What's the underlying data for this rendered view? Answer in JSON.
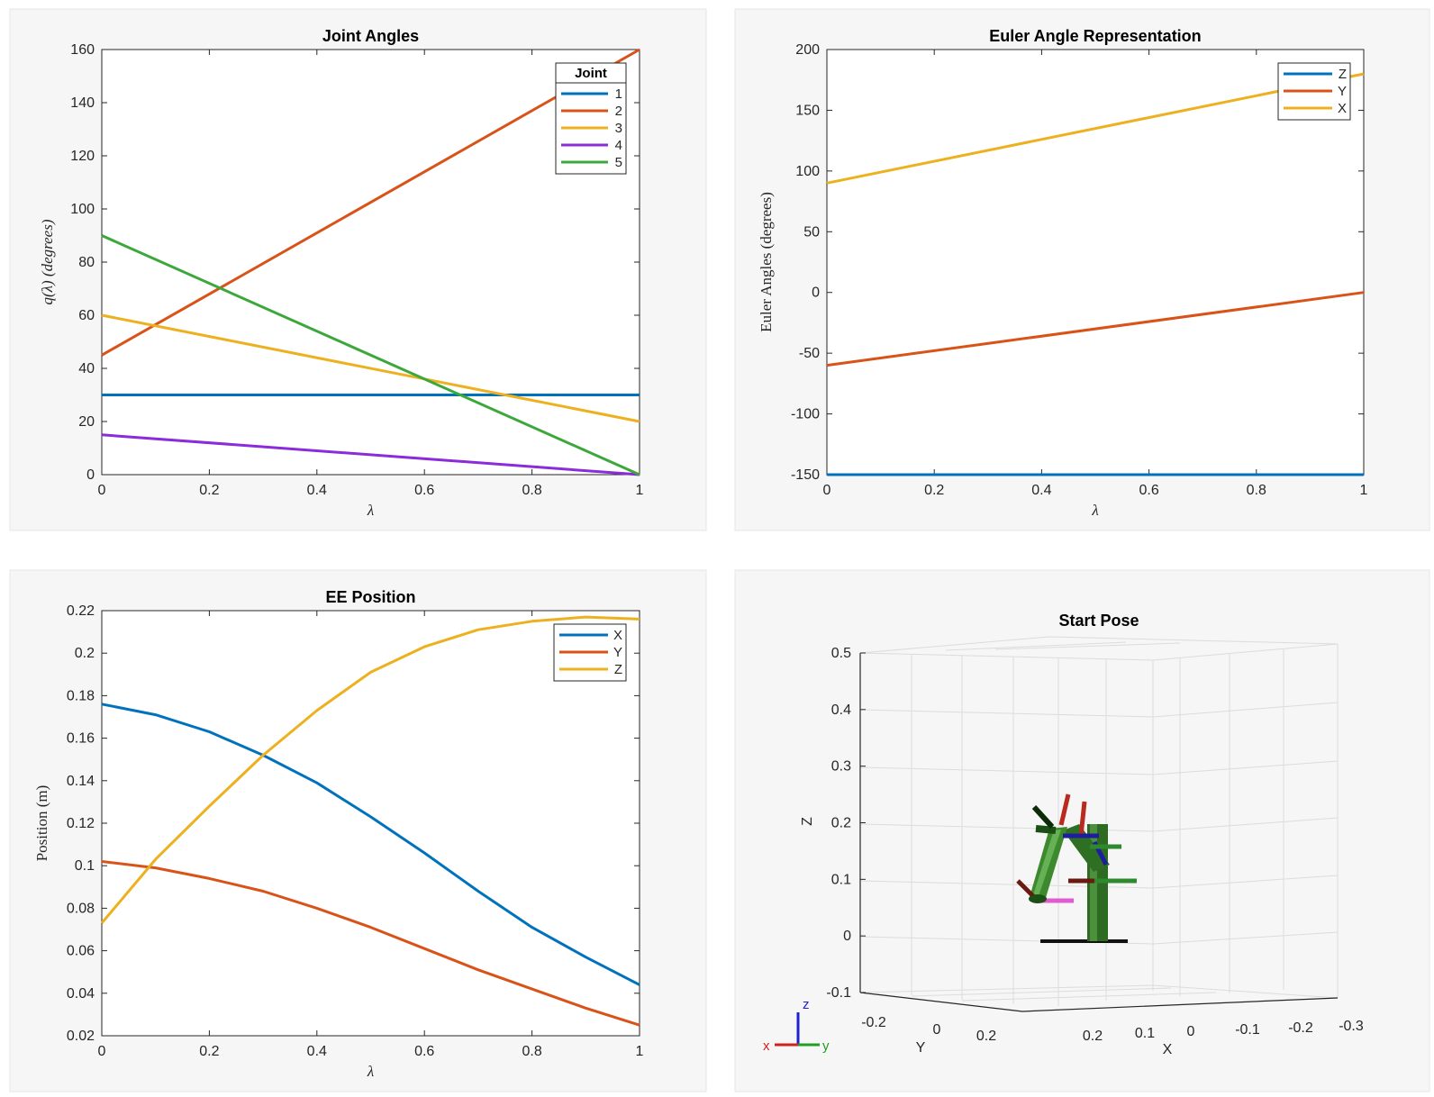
{
  "colors": {
    "c1": "#0072BD",
    "c2": "#D95319",
    "c3": "#EDB120",
    "c4": "#7E2F8E",
    "c5": "#3CA83C"
  },
  "chart_data": [
    {
      "type": "line",
      "title": "Joint Angles",
      "xlabel": "λ",
      "ylabel": "q(λ) (degrees)",
      "xlim": [
        0,
        1
      ],
      "ylim": [
        0,
        160
      ],
      "xticks": [
        "0",
        "0.2",
        "0.4",
        "0.6",
        "0.8",
        "1"
      ],
      "yticks": [
        "0",
        "20",
        "40",
        "60",
        "80",
        "100",
        "120",
        "140",
        "160"
      ],
      "legend_title": "Joint",
      "legend_position": "top-right",
      "series": [
        {
          "name": "1",
          "color": "#0072BD",
          "x": [
            0,
            1
          ],
          "y": [
            30,
            30
          ]
        },
        {
          "name": "2",
          "color": "#D95319",
          "x": [
            0,
            1
          ],
          "y": [
            45,
            160
          ]
        },
        {
          "name": "3",
          "color": "#EDB120",
          "x": [
            0,
            1
          ],
          "y": [
            60,
            20
          ]
        },
        {
          "name": "4",
          "color": "#8B2BD9",
          "x": [
            0,
            1
          ],
          "y": [
            15,
            0
          ]
        },
        {
          "name": "5",
          "color": "#3CA83C",
          "x": [
            0,
            1
          ],
          "y": [
            90,
            0
          ]
        }
      ]
    },
    {
      "type": "line",
      "title": "Euler Angle Representation",
      "xlabel": "λ",
      "ylabel": "Euler Angles (degrees)",
      "xlim": [
        0,
        1
      ],
      "ylim": [
        -150,
        200
      ],
      "xticks": [
        "0",
        "0.2",
        "0.4",
        "0.6",
        "0.8",
        "1"
      ],
      "yticks": [
        "-150",
        "-100",
        "-50",
        "0",
        "50",
        "100",
        "150",
        "200"
      ],
      "legend_position": "top-right",
      "series": [
        {
          "name": "Z",
          "color": "#0072BD",
          "x": [
            0,
            1
          ],
          "y": [
            -150,
            -150
          ]
        },
        {
          "name": "Y",
          "color": "#D95319",
          "x": [
            0,
            1
          ],
          "y": [
            -60,
            0
          ]
        },
        {
          "name": "X",
          "color": "#EDB120",
          "x": [
            0,
            1
          ],
          "y": [
            90,
            180
          ]
        }
      ]
    },
    {
      "type": "line",
      "title": "EE Position",
      "xlabel": "λ",
      "ylabel": "Position (m)",
      "xlim": [
        0,
        1
      ],
      "ylim": [
        0.02,
        0.22
      ],
      "xticks": [
        "0",
        "0.2",
        "0.4",
        "0.6",
        "0.8",
        "1"
      ],
      "yticks": [
        "0.02",
        "0.04",
        "0.06",
        "0.08",
        "0.1",
        "0.12",
        "0.14",
        "0.16",
        "0.18",
        "0.2",
        "0.22"
      ],
      "legend_position": "top-right",
      "series": [
        {
          "name": "X",
          "color": "#0072BD",
          "x": [
            0,
            0.1,
            0.2,
            0.3,
            0.4,
            0.5,
            0.6,
            0.7,
            0.8,
            0.9,
            1.0
          ],
          "y": [
            0.176,
            0.171,
            0.163,
            0.152,
            0.139,
            0.123,
            0.106,
            0.088,
            0.071,
            0.057,
            0.044
          ]
        },
        {
          "name": "Y",
          "color": "#D95319",
          "x": [
            0,
            0.1,
            0.2,
            0.3,
            0.4,
            0.5,
            0.6,
            0.7,
            0.8,
            0.9,
            1.0
          ],
          "y": [
            0.102,
            0.099,
            0.094,
            0.088,
            0.08,
            0.071,
            0.061,
            0.051,
            0.042,
            0.033,
            0.025
          ]
        },
        {
          "name": "Z",
          "color": "#EDB120",
          "x": [
            0,
            0.1,
            0.2,
            0.3,
            0.4,
            0.5,
            0.6,
            0.7,
            0.8,
            0.9,
            1.0
          ],
          "y": [
            0.073,
            0.103,
            0.128,
            0.152,
            0.173,
            0.191,
            0.203,
            0.211,
            0.215,
            0.217,
            0.216
          ]
        }
      ]
    },
    {
      "type": "scatter",
      "title": "Start Pose",
      "xlabel": "X",
      "ylabel": "Y",
      "zlabel": "Z",
      "zticks": [
        "-0.1",
        "0",
        "0.1",
        "0.2",
        "0.3",
        "0.4",
        "0.5"
      ],
      "yticks": [
        "-0.2",
        "0",
        "0.2"
      ],
      "xticks": [
        "0.2",
        "0.1",
        "0",
        "-0.1",
        "-0.2",
        "-0.3"
      ],
      "triad": {
        "x": "x",
        "y": "y",
        "z": "z"
      }
    }
  ]
}
